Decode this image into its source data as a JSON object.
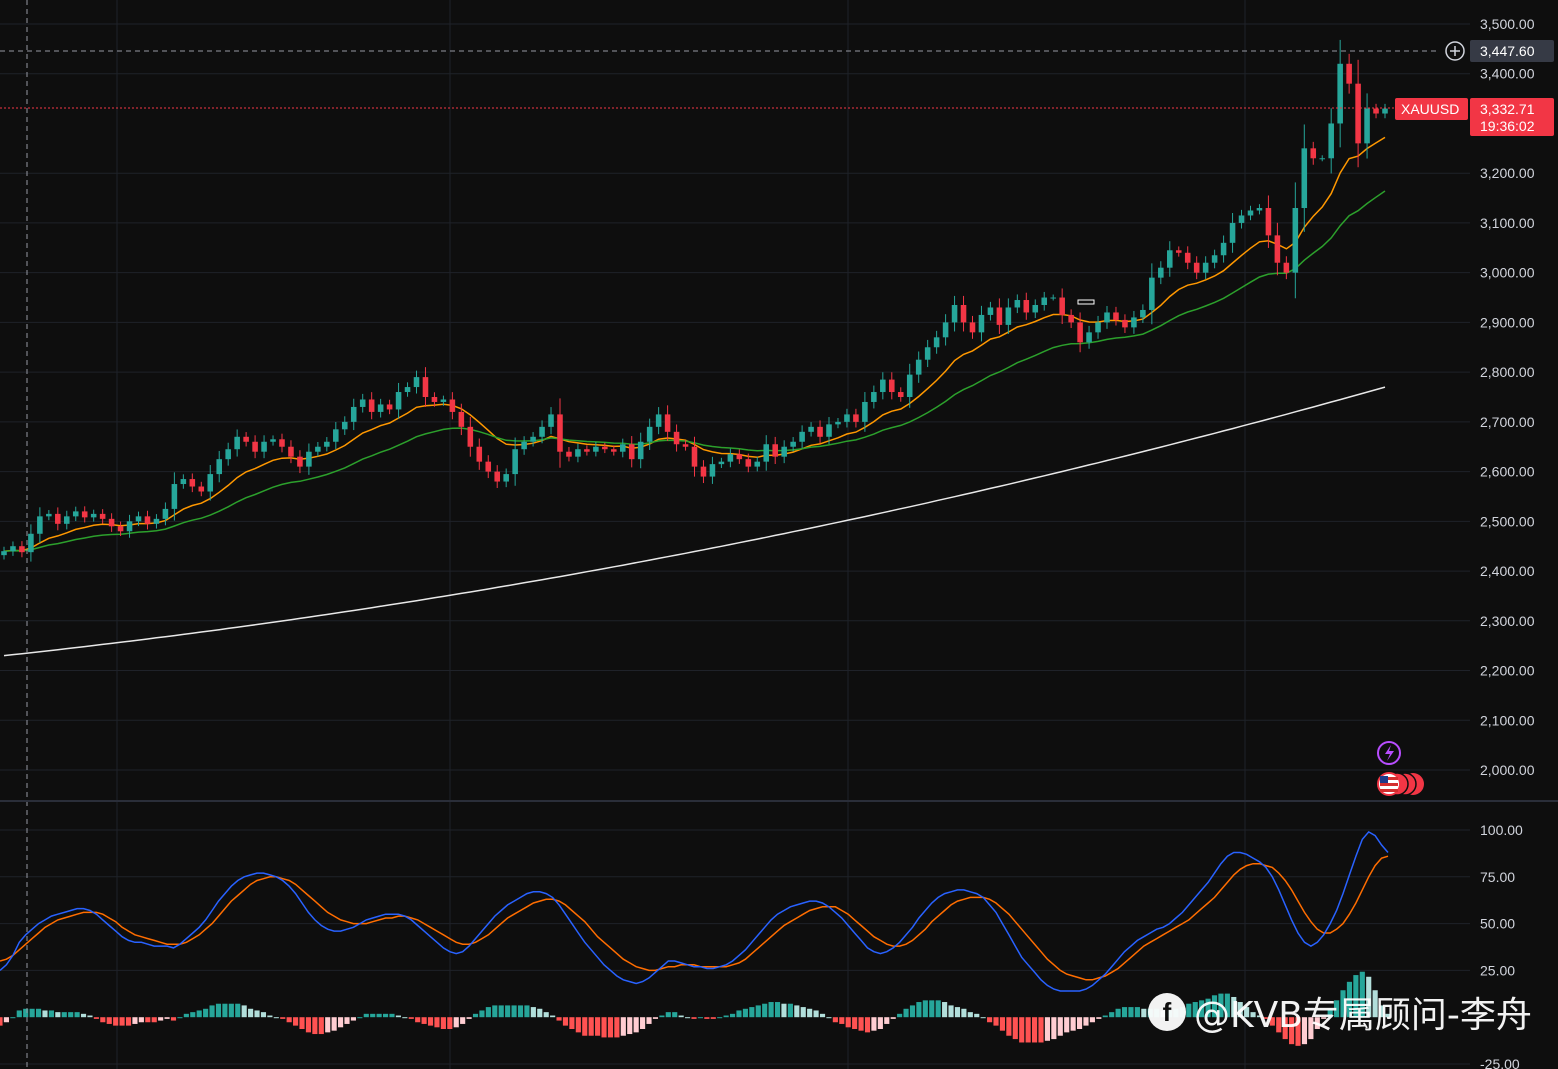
{
  "chart_data": [
    {
      "type": "candlestick",
      "symbol": "XAUUSD",
      "y_ticks": [
        "3,500.00",
        "3,400.00",
        "3,200.00",
        "3,100.00",
        "3,000.00",
        "2,900.00",
        "2,800.00",
        "2,700.00",
        "2,600.00",
        "2,500.00",
        "2,400.00",
        "2,300.00",
        "2,200.00",
        "2,100.00",
        "2,000.00"
      ],
      "ylim": [
        1940,
        3560
      ],
      "last_price": "3,332.71",
      "countdown": "19:36:02",
      "crosshair_price": "3,447.60",
      "closes": [
        2440,
        2450,
        2438,
        2475,
        2510,
        2515,
        2495,
        2510,
        2520,
        2508,
        2515,
        2505,
        2490,
        2480,
        2500,
        2510,
        2495,
        2505,
        2525,
        2575,
        2585,
        2570,
        2560,
        2595,
        2625,
        2645,
        2670,
        2660,
        2640,
        2660,
        2665,
        2650,
        2630,
        2610,
        2640,
        2650,
        2660,
        2685,
        2700,
        2730,
        2745,
        2720,
        2735,
        2725,
        2760,
        2770,
        2790,
        2750,
        2740,
        2745,
        2720,
        2690,
        2650,
        2620,
        2600,
        2580,
        2595,
        2645,
        2660,
        2670,
        2690,
        2715,
        2640,
        2630,
        2645,
        2640,
        2650,
        2645,
        2640,
        2655,
        2625,
        2660,
        2690,
        2715,
        2680,
        2655,
        2650,
        2610,
        2590,
        2615,
        2620,
        2635,
        2625,
        2610,
        2620,
        2655,
        2630,
        2650,
        2660,
        2680,
        2690,
        2670,
        2695,
        2700,
        2715,
        2700,
        2740,
        2760,
        2785,
        2760,
        2750,
        2795,
        2825,
        2850,
        2870,
        2900,
        2935,
        2900,
        2880,
        2915,
        2930,
        2895,
        2930,
        2945,
        2920,
        2935,
        2950,
        2950,
        2915,
        2900,
        2860,
        2880,
        2900,
        2920,
        2905,
        2890,
        2910,
        2925,
        2990,
        3010,
        3045,
        3040,
        3020,
        3000,
        3020,
        3035,
        3060,
        3100,
        3115,
        3125,
        3130,
        3075,
        3020,
        3000,
        3130,
        3250,
        3230,
        3230,
        3300,
        3420,
        3380,
        3260,
        3330,
        3320,
        3330
      ],
      "ema_fast_end": 3210,
      "ema_slow_end": 3095,
      "sma_long_end": 2770
    },
    {
      "type": "oscillator",
      "y_ticks": [
        "100.00",
        "75.00",
        "50.00",
        "25.00",
        "-25.00"
      ],
      "ylim": [
        -25,
        100
      ],
      "main_line": [
        25,
        28,
        33,
        40,
        44,
        47,
        50,
        52,
        54,
        55,
        56,
        57,
        58,
        58,
        57,
        55,
        52,
        49,
        46,
        43,
        41,
        40,
        40,
        39,
        38,
        38,
        38,
        37,
        39,
        42,
        45,
        48,
        52,
        57,
        62,
        66,
        70,
        73,
        75,
        76,
        77,
        77,
        76,
        75,
        73,
        70,
        66,
        61,
        56,
        52,
        49,
        47,
        46,
        46,
        47,
        48,
        50,
        52,
        53,
        54,
        55,
        55,
        55,
        54,
        52,
        49,
        46,
        43,
        40,
        37,
        35,
        34,
        35,
        38,
        42,
        46,
        50,
        54,
        57,
        60,
        62,
        64,
        66,
        67,
        67,
        66,
        64,
        60,
        55,
        50,
        45,
        40,
        36,
        32,
        28,
        25,
        22,
        20,
        19,
        18,
        19,
        21,
        24,
        27,
        30,
        30,
        29,
        28,
        27,
        27,
        26,
        26,
        27,
        28,
        30,
        33,
        36,
        40,
        44,
        48,
        52,
        55,
        57,
        59,
        60,
        61,
        62,
        62,
        61,
        59,
        56,
        53,
        49,
        45,
        41,
        37,
        35,
        34,
        35,
        37,
        40,
        44,
        48,
        53,
        57,
        61,
        64,
        66,
        67,
        68,
        68,
        67,
        66,
        64,
        60,
        56,
        50,
        44,
        38,
        32,
        28,
        24,
        20,
        17,
        15,
        14,
        14,
        14,
        14,
        15,
        17,
        20,
        23,
        27,
        31,
        35,
        38,
        41,
        43,
        45,
        47,
        48,
        50,
        53,
        56,
        60,
        64,
        68,
        72,
        77,
        82,
        86,
        88,
        88,
        87,
        85,
        83,
        80,
        75,
        68,
        60,
        52,
        45,
        40,
        38,
        40,
        44,
        50,
        57,
        66,
        76,
        86,
        95,
        99,
        97,
        92,
        88
      ],
      "signal_line": [
        30,
        31,
        33,
        36,
        39,
        42,
        45,
        48,
        50,
        52,
        53,
        54,
        55,
        56,
        56,
        56,
        55,
        53,
        51,
        48,
        46,
        44,
        43,
        42,
        41,
        40,
        39,
        39,
        39,
        40,
        42,
        44,
        47,
        50,
        54,
        58,
        62,
        65,
        68,
        71,
        73,
        74,
        75,
        75,
        74,
        73,
        71,
        68,
        65,
        62,
        59,
        56,
        54,
        52,
        51,
        50,
        50,
        50,
        51,
        52,
        53,
        53,
        54,
        54,
        53,
        52,
        50,
        48,
        46,
        44,
        42,
        40,
        39,
        39,
        40,
        42,
        44,
        47,
        50,
        53,
        55,
        57,
        59,
        61,
        62,
        63,
        63,
        62,
        60,
        57,
        54,
        51,
        47,
        43,
        40,
        37,
        34,
        31,
        29,
        27,
        26,
        25,
        25,
        26,
        27,
        27,
        28,
        28,
        28,
        27,
        27,
        27,
        27,
        27,
        28,
        29,
        31,
        34,
        37,
        40,
        43,
        46,
        49,
        51,
        53,
        55,
        57,
        58,
        59,
        59,
        59,
        57,
        55,
        52,
        49,
        46,
        43,
        41,
        39,
        38,
        38,
        39,
        41,
        44,
        47,
        51,
        54,
        57,
        60,
        62,
        63,
        64,
        64,
        64,
        63,
        61,
        58,
        55,
        51,
        47,
        43,
        39,
        35,
        31,
        28,
        25,
        23,
        22,
        21,
        20,
        20,
        21,
        22,
        24,
        26,
        29,
        32,
        35,
        38,
        40,
        42,
        44,
        46,
        48,
        50,
        52,
        55,
        58,
        61,
        64,
        68,
        72,
        76,
        79,
        81,
        82,
        82,
        81,
        80,
        77,
        73,
        68,
        62,
        56,
        51,
        47,
        45,
        45,
        47,
        50,
        55,
        61,
        68,
        75,
        81,
        85,
        86
      ]
    }
  ],
  "watermark": "@KVB专属顾问-李舟",
  "colors": {
    "up": "#26a69a",
    "down": "#f23645",
    "ema_fast": "#ff9800",
    "ema_slow": "#2ca02c",
    "sma_long": "#e8e8e8",
    "osc_main": "#2962ff",
    "osc_signal": "#ff6d00",
    "price_tag": "#f23645",
    "event_icon": "#b84dff"
  },
  "icons": [
    "plus-circle-icon",
    "lightning-icon",
    "us-flag-icon"
  ]
}
